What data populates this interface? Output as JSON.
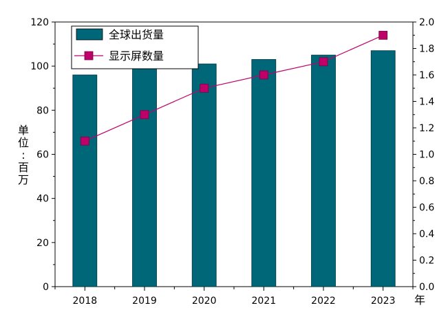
{
  "chart_data": {
    "type": "bar+line",
    "categories": [
      "2018",
      "2019",
      "2020",
      "2021",
      "2022",
      "2023"
    ],
    "x_unit_label": "年",
    "y_left": {
      "label": "单位:百万",
      "range": [
        0,
        120
      ],
      "ticks": [
        0,
        20,
        40,
        60,
        80,
        100,
        120
      ],
      "tick_labels": [
        "0",
        "20",
        "40",
        "60",
        "80",
        "100",
        "120"
      ]
    },
    "y_right": {
      "range": [
        0,
        2.0
      ],
      "ticks": [
        0.0,
        0.2,
        0.4,
        0.6,
        0.8,
        1.0,
        1.2,
        1.4,
        1.6,
        1.8,
        2.0
      ],
      "tick_labels": [
        "0.0",
        "0.2",
        "0.4",
        "0.6",
        "0.8",
        "1.0",
        "1.2",
        "1.4",
        "1.6",
        "1.8",
        "2.0"
      ]
    },
    "series": [
      {
        "name": "全球出货量",
        "type": "bar",
        "axis": "left",
        "color": "#006778",
        "values": [
          96,
          99,
          101,
          103,
          105,
          107
        ]
      },
      {
        "name": "显示屏数量",
        "type": "line",
        "axis": "right",
        "color": "#c0006a",
        "values": [
          1.1,
          1.3,
          1.5,
          1.6,
          1.7,
          1.9
        ]
      }
    ],
    "legend": {
      "placement": "top-left",
      "items": [
        "全球出货量",
        "显示屏数量"
      ]
    },
    "grid": false
  }
}
